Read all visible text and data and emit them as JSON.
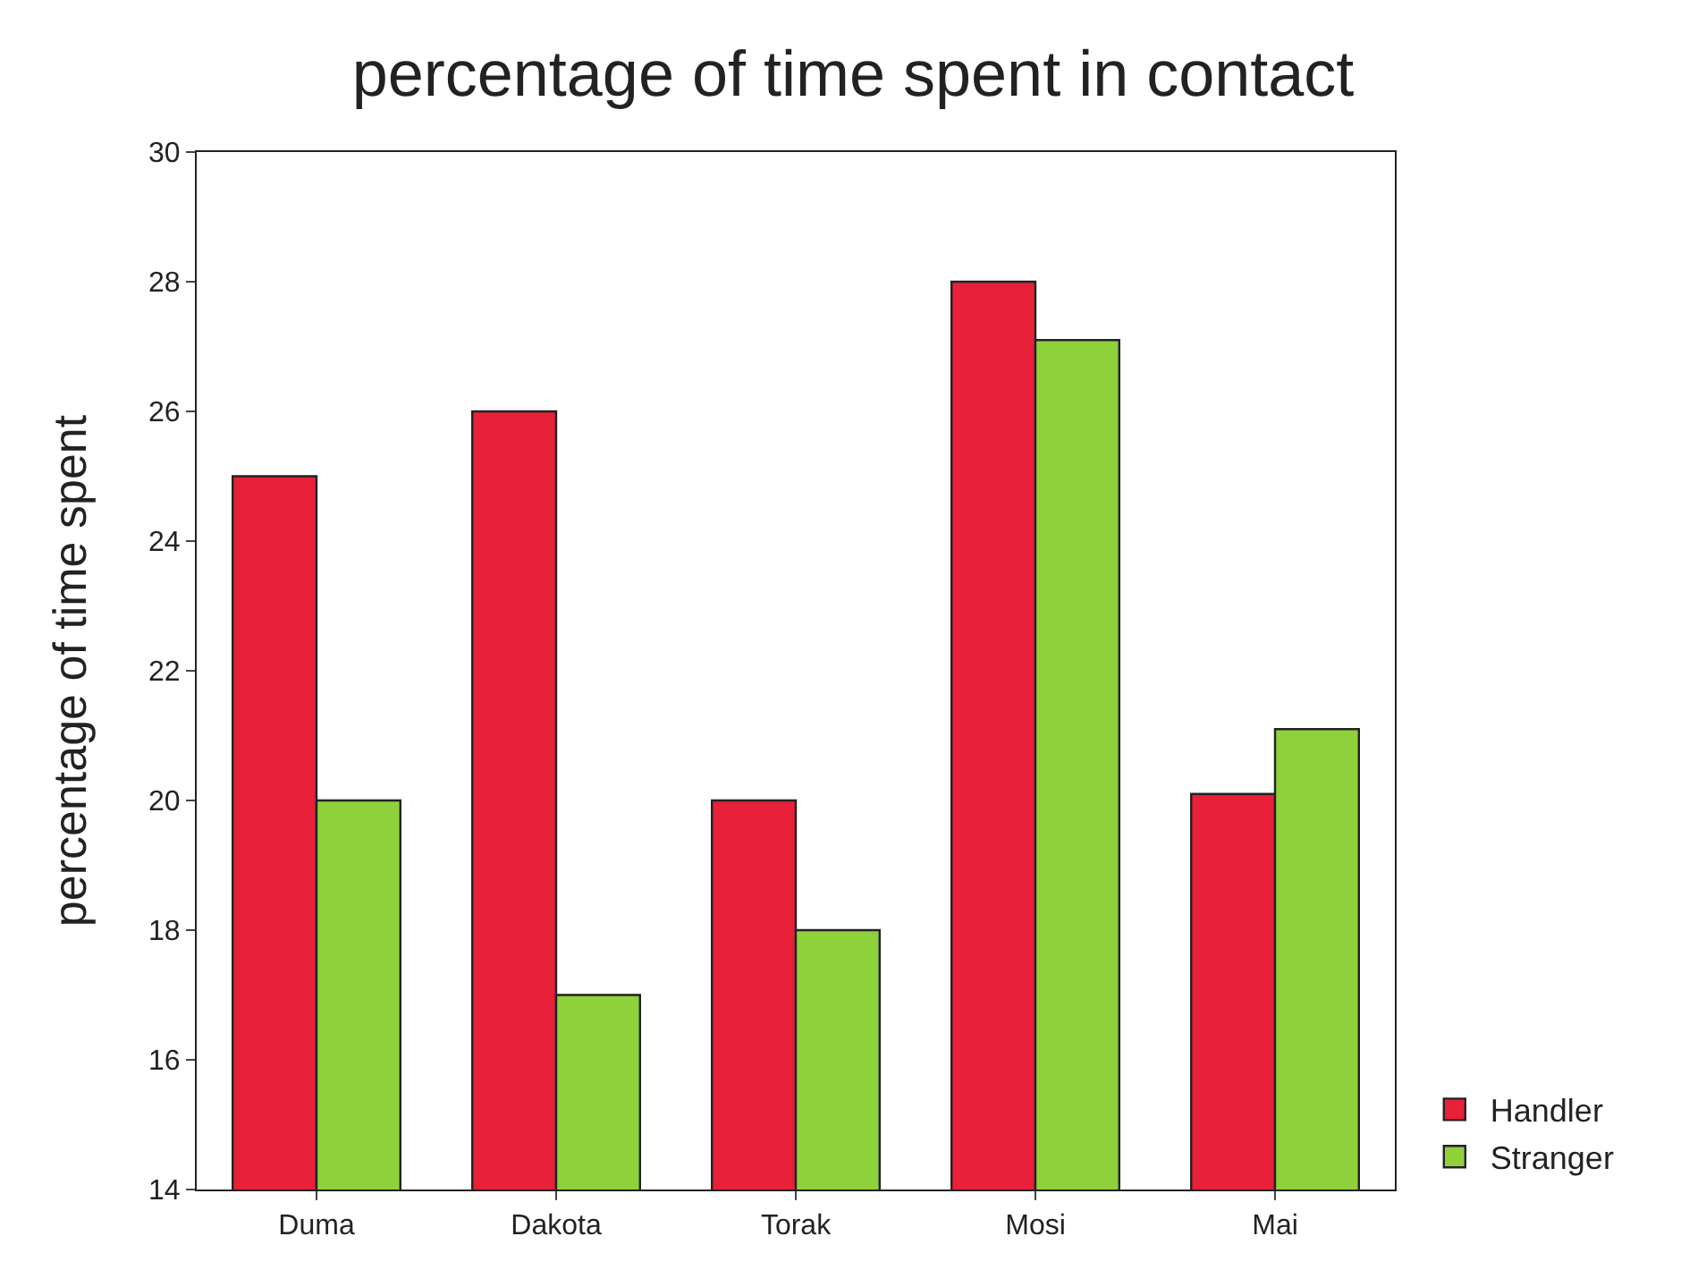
{
  "chart_data": {
    "type": "bar",
    "title": "percentage of time spent in contact",
    "ylabel": "percentage of time spent",
    "categories": [
      "Duma",
      "Dakota",
      "Torak",
      "Mosi",
      "Mai"
    ],
    "series": [
      {
        "name": "Handler",
        "color": "#e8203a",
        "values": [
          25,
          26,
          20,
          28,
          20.1
        ]
      },
      {
        "name": "Stranger",
        "color": "#8fd13a",
        "values": [
          20,
          17,
          18,
          27.1,
          21.1
        ]
      }
    ],
    "ylim": [
      14,
      30
    ],
    "yticks": [
      14,
      16,
      18,
      20,
      22,
      24,
      26,
      28,
      30
    ],
    "grid": false,
    "legend": "bottom right"
  }
}
